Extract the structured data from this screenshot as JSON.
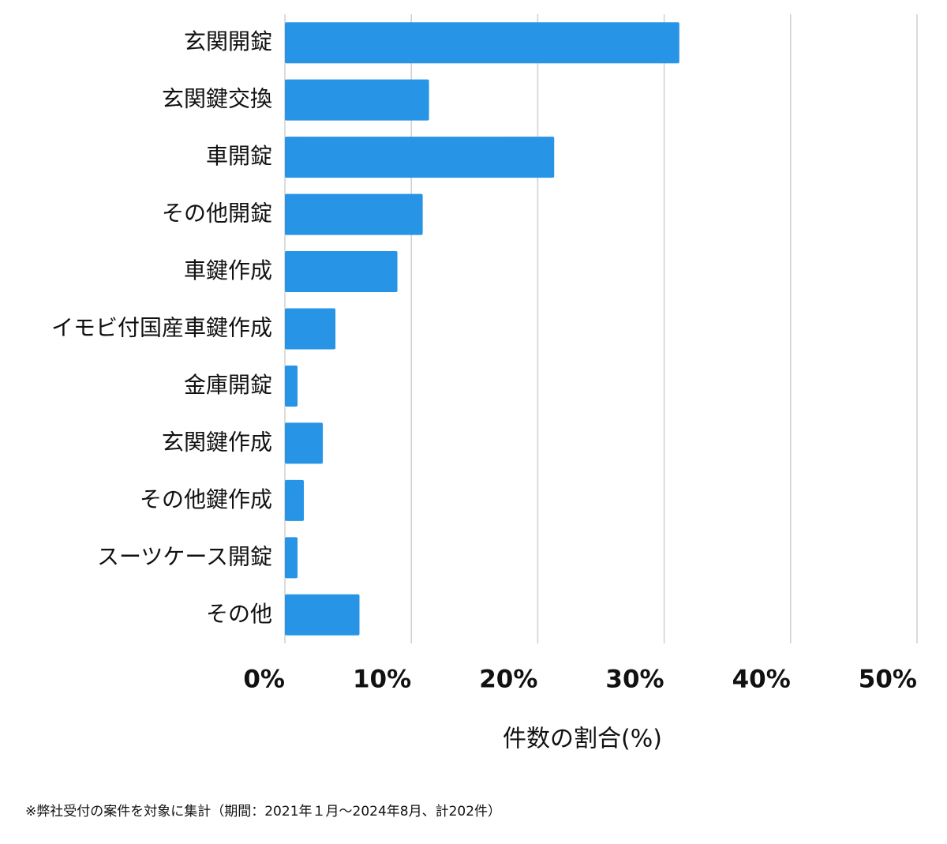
{
  "chart_data": {
    "type": "bar",
    "orientation": "horizontal",
    "categories": [
      "玄関開錠",
      "玄関鍵交換",
      "車開錠",
      "その他開錠",
      "車鍵作成",
      "イモビ付国産車鍵作成",
      "金庫開錠",
      "玄関鍵作成",
      "その他鍵作成",
      "スーツケース開錠",
      "その他"
    ],
    "values": [
      31.2,
      11.4,
      21.3,
      10.9,
      8.9,
      4.0,
      1.0,
      3.0,
      1.5,
      1.0,
      5.9
    ],
    "color": "#2794e6",
    "xlim": [
      0,
      50
    ],
    "xticks": [
      {
        "value": 0,
        "label": "0%"
      },
      {
        "value": 10,
        "label": "10%"
      },
      {
        "value": 20,
        "label": "20%"
      },
      {
        "value": 30,
        "label": "30%"
      },
      {
        "value": 40,
        "label": "40%"
      },
      {
        "value": 50,
        "label": "50%"
      }
    ],
    "x_label": "件数の割合(%)",
    "grid": true,
    "note": "※弊社受付の案件を対象に集計（期間：2021年１月〜2024年8月、計202件）"
  }
}
